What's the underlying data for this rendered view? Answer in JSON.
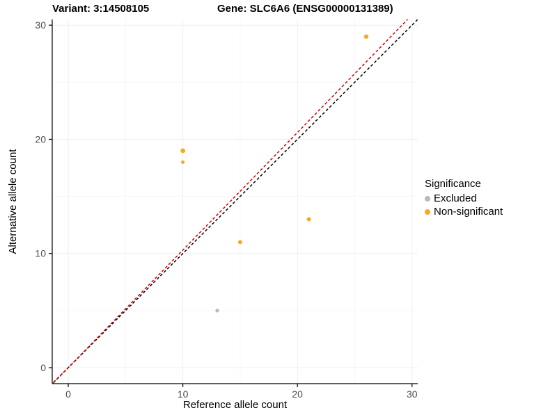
{
  "titles": {
    "variant": "Variant: 3:14508105",
    "gene": "Gene: SLC6A6 (ENSG00000131389)"
  },
  "chart_data": {
    "type": "scatter",
    "xlabel": "Reference allele count",
    "ylabel": "Alternative allele count",
    "xlim": [
      -1.4,
      30.5
    ],
    "ylim": [
      -1.4,
      30.5
    ],
    "xticks": [
      0,
      10,
      20,
      30
    ],
    "yticks": [
      0,
      10,
      20,
      30
    ],
    "grid": true,
    "legend": {
      "title": "Significance",
      "position": "right",
      "entries": [
        {
          "label": "Excluded",
          "color": "#b8b8b8"
        },
        {
          "label": "Non-significant",
          "color": "#f9a825"
        }
      ]
    },
    "series": [
      {
        "name": "Excluded",
        "color": "#b8b8b8",
        "points": [
          [
            13,
            5,
            2.6
          ]
        ]
      },
      {
        "name": "Non-significant",
        "color": "#f9a825",
        "points": [
          [
            10,
            19,
            3.4
          ],
          [
            10,
            18,
            2.6
          ],
          [
            15,
            11,
            3.0
          ],
          [
            21,
            13,
            3.0
          ],
          [
            26,
            29,
            3.2
          ]
        ]
      }
    ],
    "lines": [
      {
        "name": "identity-line",
        "color": "#000000",
        "dash": "4 3",
        "slope": 1.0,
        "intercept": 0
      },
      {
        "name": "fit-line",
        "color": "#d40000",
        "dash": "4 3",
        "slope": 1.03,
        "intercept": 0
      }
    ],
    "colors": {
      "axis": "#000000",
      "tick_label": "#4d4d4d",
      "grid_major": "#efefef",
      "grid_minor": "#f7f7f7"
    }
  }
}
